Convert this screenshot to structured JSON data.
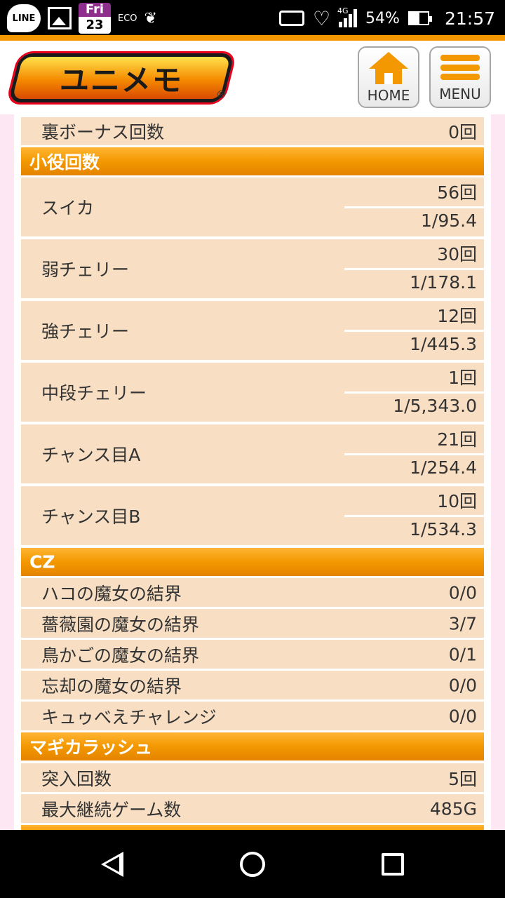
{
  "statusbar": {
    "line_label": "LINE",
    "cal_day": "Fri",
    "cal_date": "23",
    "eco_label": "ECO",
    "network": "4G",
    "battery": "54%",
    "time": "21:57"
  },
  "header": {
    "logo_text": "ユニメモ",
    "logo_mark": "®",
    "home_label": "HOME",
    "menu_label": "MENU"
  },
  "rows": {
    "ura_bonus": {
      "label": "裏ボーナス回数",
      "value": "0回"
    }
  },
  "sections": {
    "koyaku": "小役回数",
    "cz": "CZ",
    "magica": "マギカラッシュ"
  },
  "koyaku": [
    {
      "label": "スイカ",
      "count": "56回",
      "prob": "1/95.4"
    },
    {
      "label": "弱チェリー",
      "count": "30回",
      "prob": "1/178.1"
    },
    {
      "label": "強チェリー",
      "count": "12回",
      "prob": "1/445.3"
    },
    {
      "label": "中段チェリー",
      "count": "1回",
      "prob": "1/5,343.0"
    },
    {
      "label": "チャンス目A",
      "count": "21回",
      "prob": "1/254.4"
    },
    {
      "label": "チャンス目B",
      "count": "10回",
      "prob": "1/534.3"
    }
  ],
  "cz": [
    {
      "label": "ハコの魔女の結界",
      "value": "0/0"
    },
    {
      "label": "薔薇園の魔女の結界",
      "value": "3/7"
    },
    {
      "label": "鳥かごの魔女の結界",
      "value": "0/1"
    },
    {
      "label": "忘却の魔女の結界",
      "value": "0/0"
    },
    {
      "label": "キュゥべえチャレンジ",
      "value": "0/0"
    }
  ],
  "magica": [
    {
      "label": "突入回数",
      "value": "5回"
    },
    {
      "label": "最大継続ゲーム数",
      "value": "485G"
    }
  ],
  "colors": {
    "accent": "#f39800",
    "row_bg": "#f8dfc3",
    "page_bg": "#fde7f3"
  },
  "icons": {
    "nav_back": "back-triangle-icon",
    "nav_home": "home-circle-icon",
    "nav_recent": "recent-square-icon"
  }
}
